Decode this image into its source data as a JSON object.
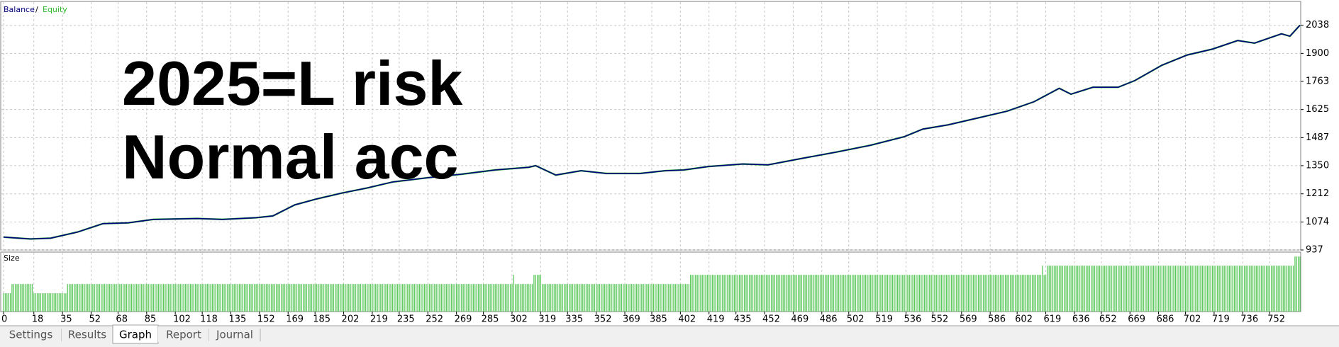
{
  "chart_data": {
    "type": "line",
    "annotations": [
      "2025=L risk",
      "Normal acc"
    ],
    "legend_separator": "/",
    "x": [
      0,
      16,
      28,
      44,
      59,
      74,
      89,
      115,
      130,
      150,
      160,
      173,
      186,
      201,
      216,
      231,
      252,
      272,
      292,
      312,
      316,
      328,
      343,
      358,
      378,
      393,
      404,
      419,
      439,
      454,
      475,
      495,
      515,
      535,
      546,
      561,
      581,
      596,
      612,
      627,
      634,
      647,
      662,
      672,
      688,
      703,
      718,
      733,
      743,
      759,
      764,
      770
    ],
    "series": [
      {
        "name": "Equity",
        "color": "#2eb82e",
        "values": [
          1000,
          991,
          995,
          1025,
          1066,
          1070,
          1087,
          1091,
          1087,
          1095,
          1104,
          1158,
          1187,
          1216,
          1241,
          1270,
          1291,
          1308,
          1329,
          1342,
          1350,
          1304,
          1325,
          1312,
          1312,
          1325,
          1329,
          1346,
          1358,
          1354,
          1387,
          1417,
          1450,
          1492,
          1529,
          1550,
          1588,
          1617,
          1663,
          1729,
          1700,
          1734,
          1734,
          1767,
          1842,
          1892,
          1921,
          1963,
          1950,
          1996,
          1984,
          2038
        ]
      },
      {
        "name": "Balance",
        "color": "#00007f",
        "values": [
          1000,
          991,
          995,
          1025,
          1066,
          1070,
          1087,
          1091,
          1087,
          1095,
          1104,
          1158,
          1187,
          1216,
          1241,
          1270,
          1291,
          1308,
          1329,
          1342,
          1350,
          1304,
          1325,
          1312,
          1312,
          1325,
          1329,
          1346,
          1358,
          1354,
          1387,
          1417,
          1450,
          1492,
          1529,
          1550,
          1588,
          1617,
          1663,
          1729,
          1700,
          1734,
          1734,
          1767,
          1842,
          1892,
          1921,
          1963,
          1950,
          1996,
          1984,
          2038
        ]
      }
    ],
    "xlim": [
      0,
      770
    ],
    "ylim": [
      937,
      2151
    ],
    "yticks": [
      937,
      1074,
      1212,
      1350,
      1487,
      1625,
      1763,
      1900,
      2038
    ],
    "xticks": [
      0,
      18,
      35,
      52,
      68,
      85,
      102,
      118,
      135,
      152,
      169,
      185,
      202,
      219,
      235,
      252,
      269,
      285,
      302,
      319,
      335,
      352,
      369,
      385,
      402,
      419,
      435,
      452,
      469,
      486,
      502,
      519,
      536,
      552,
      569,
      586,
      602,
      619,
      636,
      652,
      669,
      686,
      702,
      719,
      736,
      752
    ],
    "grid": true,
    "size_panel": {
      "title": "Size",
      "color": "#5ec95e",
      "ylim": [
        0,
        0.064
      ],
      "runs": [
        {
          "start": 0,
          "end": 4,
          "value": 0.02
        },
        {
          "start": 5,
          "end": 17,
          "value": 0.03
        },
        {
          "start": 18,
          "end": 37,
          "value": 0.02
        },
        {
          "start": 38,
          "end": 302,
          "value": 0.03
        },
        {
          "start": 303,
          "end": 303,
          "value": 0.04
        },
        {
          "start": 304,
          "end": 314,
          "value": 0.03
        },
        {
          "start": 315,
          "end": 319,
          "value": 0.04
        },
        {
          "start": 320,
          "end": 407,
          "value": 0.03
        },
        {
          "start": 408,
          "end": 616,
          "value": 0.04
        },
        {
          "start": 617,
          "end": 617,
          "value": 0.05
        },
        {
          "start": 618,
          "end": 619,
          "value": 0.04
        },
        {
          "start": 620,
          "end": 766,
          "value": 0.05
        },
        {
          "start": 767,
          "end": 770,
          "value": 0.06
        }
      ]
    }
  },
  "tabs": [
    "Settings",
    "Results",
    "Graph",
    "Report",
    "Journal"
  ],
  "active_tab": 2
}
